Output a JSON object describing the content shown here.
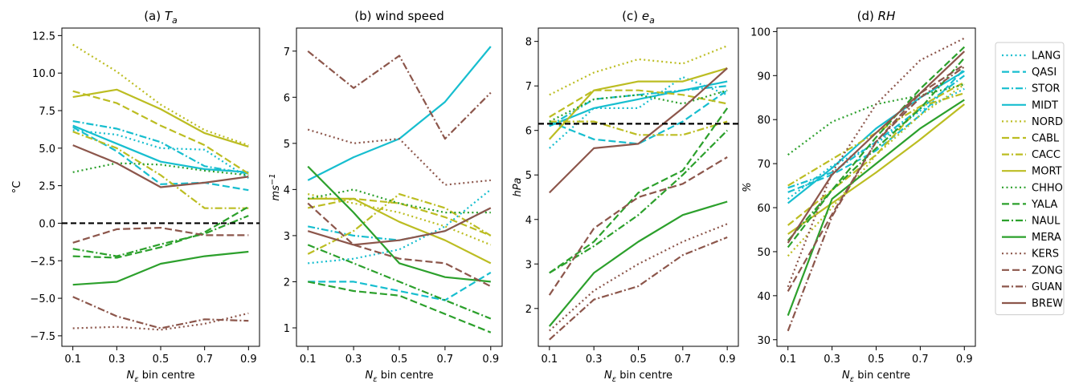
{
  "figure": {
    "legend": [
      {
        "name": "LANG",
        "color": "#17becf",
        "dash": "dot"
      },
      {
        "name": "QASI",
        "color": "#17becf",
        "dash": "dash"
      },
      {
        "name": "STOR",
        "color": "#17becf",
        "dash": "dashdot"
      },
      {
        "name": "MIDT",
        "color": "#17becf",
        "dash": "solid"
      },
      {
        "name": "NORD",
        "color": "#bcbd22",
        "dash": "dot"
      },
      {
        "name": "CABL",
        "color": "#bcbd22",
        "dash": "dash"
      },
      {
        "name": "CACC",
        "color": "#bcbd22",
        "dash": "dashdot"
      },
      {
        "name": "MORT",
        "color": "#bcbd22",
        "dash": "solid"
      },
      {
        "name": "CHHO",
        "color": "#2ca02c",
        "dash": "dot"
      },
      {
        "name": "YALA",
        "color": "#2ca02c",
        "dash": "dash"
      },
      {
        "name": "NAUL",
        "color": "#2ca02c",
        "dash": "dashdot"
      },
      {
        "name": "MERA",
        "color": "#2ca02c",
        "dash": "solid"
      },
      {
        "name": "KERS",
        "color": "#8c564b",
        "dash": "dot"
      },
      {
        "name": "ZONG",
        "color": "#8c564b",
        "dash": "dash"
      },
      {
        "name": "GUAN",
        "color": "#8c564b",
        "dash": "dashdot"
      },
      {
        "name": "BREW",
        "color": "#8c564b",
        "dash": "solid"
      }
    ]
  },
  "chart_data": [
    {
      "type": "line",
      "title": "(a) T",
      "title_sub": "a",
      "xlabel": "N",
      "xlabel_sub": "ε",
      "xlabel_rest": " bin centre",
      "ylabel": "°C",
      "x": [
        0.1,
        0.3,
        0.5,
        0.7,
        0.9
      ],
      "xticks": [
        "0.1",
        "0.3",
        "0.5",
        "0.7",
        "0.9"
      ],
      "ylim": [
        -8.2,
        13.0
      ],
      "yticks": [
        -7.5,
        -5.0,
        -2.5,
        0.0,
        2.5,
        5.0,
        7.5,
        10.0,
        12.5
      ],
      "ytick_labels": [
        "−7.5",
        "−5.0",
        "−2.5",
        "0.0",
        "2.5",
        "5.0",
        "7.5",
        "10.0",
        "12.5"
      ],
      "hline": 0.0,
      "series": [
        {
          "name": "LANG",
          "values": [
            6.2,
            5.9,
            5.0,
            4.9,
            3.0
          ]
        },
        {
          "name": "QASI",
          "values": [
            6.4,
            4.8,
            2.6,
            2.7,
            2.2
          ]
        },
        {
          "name": "STOR",
          "values": [
            6.8,
            6.3,
            5.4,
            3.8,
            3.3
          ]
        },
        {
          "name": "MIDT",
          "values": [
            6.5,
            5.3,
            4.1,
            3.6,
            3.4
          ]
        },
        {
          "name": "NORD",
          "values": [
            11.9,
            10.1,
            7.9,
            6.2,
            5.2
          ]
        },
        {
          "name": "CABL",
          "values": [
            8.8,
            8.0,
            6.5,
            5.2,
            3.3
          ]
        },
        {
          "name": "CACC",
          "values": [
            6.1,
            5.0,
            3.2,
            1.0,
            1.0
          ]
        },
        {
          "name": "MORT",
          "values": [
            8.4,
            8.9,
            7.6,
            6.0,
            5.1
          ]
        },
        {
          "name": "CHHO",
          "values": [
            3.4,
            4.0,
            3.9,
            3.5,
            3.2
          ]
        },
        {
          "name": "YALA",
          "values": [
            -2.2,
            -2.3,
            -1.6,
            -0.6,
            1.1
          ]
        },
        {
          "name": "NAUL",
          "values": [
            -1.7,
            -2.2,
            -1.4,
            -0.7,
            0.5
          ]
        },
        {
          "name": "MERA",
          "values": [
            -4.1,
            -3.9,
            -2.7,
            -2.2,
            -1.9
          ]
        },
        {
          "name": "KERS",
          "values": [
            -7.0,
            -6.9,
            -7.1,
            -6.7,
            -6.0
          ]
        },
        {
          "name": "ZONG",
          "values": [
            -1.3,
            -0.4,
            -0.3,
            -0.8,
            -0.8
          ]
        },
        {
          "name": "GUAN",
          "values": [
            -4.9,
            -6.2,
            -7.0,
            -6.4,
            -6.5
          ]
        },
        {
          "name": "BREW",
          "values": [
            5.2,
            4.0,
            2.4,
            2.7,
            3.1
          ]
        }
      ]
    },
    {
      "type": "line",
      "title": "(b) wind speed",
      "xlabel": "N",
      "xlabel_sub": "ε",
      "xlabel_rest": " bin centre",
      "ylabel": "ms",
      "ylabel_sup": "−1",
      "x": [
        0.1,
        0.3,
        0.5,
        0.7,
        0.9
      ],
      "xticks": [
        "0.1",
        "0.3",
        "0.5",
        "0.7",
        "0.9"
      ],
      "ylim": [
        0.6,
        7.5
      ],
      "yticks": [
        1,
        2,
        3,
        4,
        5,
        6,
        7
      ],
      "ytick_labels": [
        "1",
        "2",
        "3",
        "4",
        "5",
        "6",
        "7"
      ],
      "series": [
        {
          "name": "LANG",
          "values": [
            2.4,
            2.5,
            2.7,
            3.2,
            4.0
          ]
        },
        {
          "name": "QASI",
          "values": [
            2.0,
            2.0,
            1.8,
            1.6,
            2.2
          ]
        },
        {
          "name": "STOR",
          "values": [
            3.2,
            3.0,
            2.9,
            3.1,
            3.6
          ]
        },
        {
          "name": "MIDT",
          "values": [
            4.2,
            4.7,
            5.1,
            5.9,
            7.1
          ]
        },
        {
          "name": "NORD",
          "values": [
            3.9,
            3.7,
            3.5,
            3.2,
            2.8
          ]
        },
        {
          "name": "CABL",
          "values": [
            3.6,
            3.8,
            3.7,
            3.4,
            3.0
          ]
        },
        {
          "name": "CACC",
          "values": [
            2.6,
            3.1,
            3.9,
            3.6,
            3.0
          ]
        },
        {
          "name": "MORT",
          "values": [
            3.8,
            3.8,
            3.3,
            2.9,
            2.4
          ]
        },
        {
          "name": "CHHO",
          "values": [
            3.8,
            4.0,
            3.7,
            3.5,
            3.5
          ]
        },
        {
          "name": "YALA",
          "values": [
            2.0,
            1.8,
            1.7,
            1.3,
            0.9
          ]
        },
        {
          "name": "NAUL",
          "values": [
            2.8,
            2.4,
            2.0,
            1.6,
            1.2
          ]
        },
        {
          "name": "MERA",
          "values": [
            4.5,
            3.5,
            2.4,
            2.1,
            2.0
          ]
        },
        {
          "name": "KERS",
          "values": [
            5.3,
            5.0,
            5.1,
            4.1,
            4.2
          ]
        },
        {
          "name": "ZONG",
          "values": [
            3.7,
            2.8,
            2.5,
            2.4,
            1.9
          ]
        },
        {
          "name": "GUAN",
          "values": [
            7.0,
            6.2,
            6.9,
            5.1,
            6.1
          ]
        },
        {
          "name": "BREW",
          "values": [
            3.1,
            2.8,
            2.9,
            3.1,
            3.6
          ]
        }
      ]
    },
    {
      "type": "line",
      "title": "(c) e",
      "title_sub": "a",
      "xlabel": "N",
      "xlabel_sub": "ε",
      "xlabel_rest": " bin centre",
      "ylabel": "hPa",
      "x": [
        0.1,
        0.3,
        0.5,
        0.7,
        0.9
      ],
      "xticks": [
        "0.1",
        "0.3",
        "0.5",
        "0.7",
        "0.9"
      ],
      "ylim": [
        1.15,
        8.3
      ],
      "yticks": [
        2,
        3,
        4,
        5,
        6,
        7,
        8
      ],
      "ytick_labels": [
        "2",
        "3",
        "4",
        "5",
        "6",
        "7",
        "8"
      ],
      "hline": 6.15,
      "series": [
        {
          "name": "LANG",
          "values": [
            5.6,
            6.5,
            6.5,
            7.2,
            6.8
          ]
        },
        {
          "name": "QASI",
          "values": [
            6.2,
            5.8,
            5.7,
            6.2,
            6.9
          ]
        },
        {
          "name": "STOR",
          "values": [
            6.1,
            6.7,
            6.8,
            6.9,
            7.0
          ]
        },
        {
          "name": "MIDT",
          "values": [
            6.1,
            6.5,
            6.7,
            6.9,
            7.1
          ]
        },
        {
          "name": "NORD",
          "values": [
            6.8,
            7.3,
            7.6,
            7.5,
            7.9
          ]
        },
        {
          "name": "CABL",
          "values": [
            6.3,
            6.9,
            6.9,
            6.8,
            6.6
          ]
        },
        {
          "name": "CACC",
          "values": [
            6.2,
            6.2,
            5.9,
            5.9,
            6.2
          ]
        },
        {
          "name": "MORT",
          "values": [
            5.8,
            6.9,
            7.1,
            7.1,
            7.4
          ]
        },
        {
          "name": "CHHO",
          "values": [
            6.2,
            6.7,
            6.8,
            6.6,
            6.9
          ]
        },
        {
          "name": "YALA",
          "values": [
            2.8,
            3.5,
            4.6,
            5.1,
            6.5
          ]
        },
        {
          "name": "NAUL",
          "values": [
            2.8,
            3.4,
            4.1,
            5.0,
            6.0
          ]
        },
        {
          "name": "MERA",
          "values": [
            1.6,
            2.8,
            3.5,
            4.1,
            4.4
          ]
        },
        {
          "name": "KERS",
          "values": [
            1.5,
            2.4,
            3.0,
            3.5,
            3.9
          ]
        },
        {
          "name": "ZONG",
          "values": [
            2.3,
            3.8,
            4.5,
            4.8,
            5.4
          ]
        },
        {
          "name": "GUAN",
          "values": [
            1.3,
            2.2,
            2.5,
            3.2,
            3.6
          ]
        },
        {
          "name": "BREW",
          "values": [
            4.6,
            5.6,
            5.7,
            6.5,
            7.4
          ]
        }
      ]
    },
    {
      "type": "line",
      "title": "(d) RH",
      "xlabel": "N",
      "xlabel_sub": "ε",
      "xlabel_rest": " bin centre",
      "ylabel": "%",
      "x": [
        0.1,
        0.3,
        0.5,
        0.7,
        0.9
      ],
      "xticks": [
        "0.1",
        "0.3",
        "0.5",
        "0.7",
        "0.9"
      ],
      "ylim": [
        28.5,
        100.8
      ],
      "yticks": [
        30,
        40,
        50,
        60,
        70,
        80,
        90,
        100
      ],
      "ytick_labels": [
        "30",
        "40",
        "50",
        "60",
        "70",
        "80",
        "90",
        "100"
      ],
      "series": [
        {
          "name": "LANG",
          "values": [
            62.0,
            69.5,
            74.5,
            82.0,
            87.0
          ]
        },
        {
          "name": "QASI",
          "values": [
            63.5,
            67.5,
            73.0,
            81.0,
            91.5
          ]
        },
        {
          "name": "STOR",
          "values": [
            64.5,
            68.0,
            75.0,
            82.5,
            90.0
          ]
        },
        {
          "name": "MIDT",
          "values": [
            61.0,
            69.0,
            78.0,
            85.0,
            91.0
          ]
        },
        {
          "name": "NORD",
          "values": [
            49.0,
            60.0,
            72.0,
            81.0,
            88.0
          ]
        },
        {
          "name": "CABL",
          "values": [
            56.0,
            64.0,
            72.0,
            83.0,
            88.5
          ]
        },
        {
          "name": "CACC",
          "values": [
            65.0,
            71.0,
            77.0,
            83.0,
            86.0
          ]
        },
        {
          "name": "MORT",
          "values": [
            54.0,
            61.0,
            68.0,
            75.5,
            83.5
          ]
        },
        {
          "name": "CHHO",
          "values": [
            72.0,
            79.5,
            83.5,
            85.5,
            88.0
          ]
        },
        {
          "name": "YALA",
          "values": [
            51.0,
            64.0,
            76.0,
            87.0,
            96.5
          ]
        },
        {
          "name": "NAUL",
          "values": [
            52.5,
            64.0,
            73.5,
            82.5,
            94.0
          ]
        },
        {
          "name": "MERA",
          "values": [
            35.5,
            62.0,
            70.0,
            78.0,
            84.5
          ]
        },
        {
          "name": "KERS",
          "values": [
            42.0,
            68.0,
            83.5,
            93.5,
            98.5
          ]
        },
        {
          "name": "ZONG",
          "values": [
            41.0,
            58.5,
            75.0,
            86.0,
            92.5
          ]
        },
        {
          "name": "GUAN",
          "values": [
            32.0,
            58.0,
            75.0,
            85.0,
            92.0
          ]
        },
        {
          "name": "BREW",
          "values": [
            52.0,
            67.5,
            77.0,
            86.0,
            95.5
          ]
        }
      ]
    }
  ]
}
